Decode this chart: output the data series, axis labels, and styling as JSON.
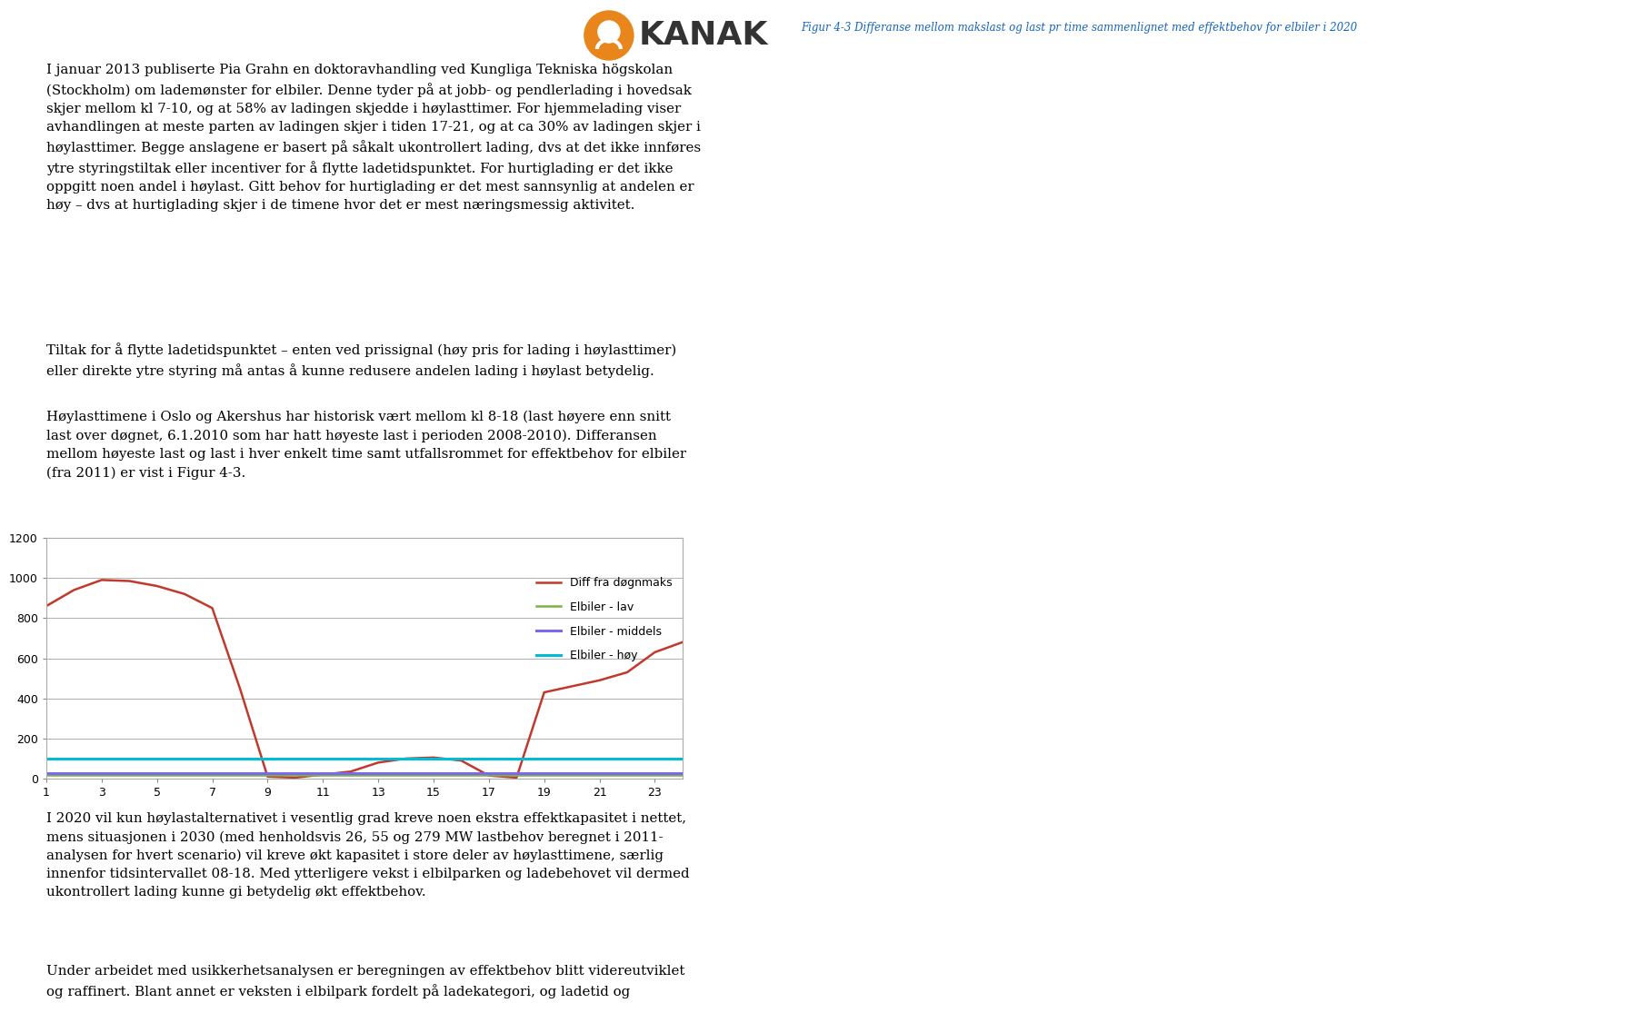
{
  "title": "",
  "x_ticks": [
    1,
    3,
    5,
    7,
    9,
    11,
    13,
    15,
    17,
    19,
    21,
    23
  ],
  "ylim": [
    0,
    1200
  ],
  "y_ticks": [
    0,
    200,
    400,
    600,
    800,
    1000,
    1200
  ],
  "diff_x": [
    1,
    2,
    3,
    4,
    5,
    6,
    7,
    8,
    9,
    10,
    11,
    12,
    13,
    14,
    15,
    16,
    17,
    18,
    19,
    20,
    21,
    22,
    23,
    24
  ],
  "diff_y": [
    860,
    940,
    990,
    985,
    960,
    920,
    850,
    450,
    10,
    5,
    20,
    35,
    80,
    100,
    105,
    90,
    15,
    5,
    430,
    460,
    490,
    530,
    630,
    680
  ],
  "elbiler_lav_y": 20,
  "elbiler_middels_y": 27,
  "elbiler_hoy_y": 100,
  "diff_color": "#c0392b",
  "elbiler_lav_color": "#7cb342",
  "elbiler_middels_color": "#7b68ee",
  "elbiler_hoy_color": "#00bcd4",
  "legend_labels": [
    "Diff fra døgnmaks",
    "Elbiler - lav",
    "Elbiler - middels",
    "Elbiler - høy"
  ],
  "caption": "Figur 4-3 Differanse mellom makslast og last pr time sammenlignet med effektbehov for elbiler i 2020",
  "caption_color": "#1565c0",
  "background_color": "#ffffff",
  "grid_color": "#b0b0b0",
  "logo_color": "#E8851B",
  "logo_text": "KANAK",
  "text1": "I januar 2013 publiserte Pia Grahn en doktoravhandling ved Kungliga Tekniska högskolan\n(Stockholm) om lademønster for elbiler. Denne tyder på at jobb- og pendlerlading i hovedsak\nskjer mellom kl 7-10, og at 58% av ladingen skjedde i høylasttimer. For hjemmelading viser\navhandlingen at meste parten av ladingen skjer i tiden 17-21, og at ca 30% av ladingen skjer i\nhøylasttimer. Begge anslagene er basert på såkalt ukontrollert lading, dvs at det ikke innføres\nytre styringstiltak eller incentiver for å flytte ladetidspunktet. For hurtiglading er det ikke\noppgitt noen andel i høylast. Gitt behov for hurtiglading er det mest sannsynlig at andelen er\nhøy – dvs at hurtiglading skjer i de timene hvor det er mest næringsmessig aktivitet.",
  "text2": "Tiltak for å flytte ladetidspunktet – enten ved prissignal (høy pris for lading i høylasttimer)\neller direkte ytre styring må antas å kunne redusere andelen lading i høylast betydelig.",
  "text3": "Høylasttimene i Oslo og Akershus har historisk vært mellom kl 8-18 (last høyere enn snitt\nlast over døgnet, 6.1.2010 som har hatt høyeste last i perioden 2008-2010). Differansen\nmellom høyeste last og last i hver enkelt time samt utfallsrommet for effektbehov for elbiler\n(fra 2011) er vist i Figur 4-3.",
  "text4": "I 2020 vil kun høylastalternativet i vesentlig grad kreve noen ekstra effektkapasitet i nettet,\nmens situasjonen i 2030 (med henholdsvis 26, 55 og 279 MW lastbehov beregnet i 2011-\nanalysen for hvert scenario) vil kreve økt kapasitet i store deler av høylasttimene, særlig\ninnenfor tidsintervallet 08-18. Med ytterligere vekst i elbilparken og ladebehovet vil dermed\nukontrollert lading kunne gi betydelig økt effektbehov.",
  "text5": "Under arbeidet med usikkerhetsanalysen er beregningen av effektbehov blitt videreutviklet\nog raffinert. Blant annet er veksten i elbilpark fordelt på ladekategori, og ladetid og"
}
